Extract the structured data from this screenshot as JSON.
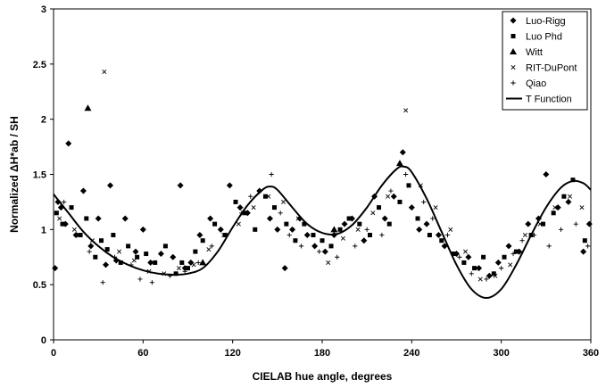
{
  "chart_data": {
    "type": "scatter",
    "xlabel": "CIELAB hue angle, degrees",
    "ylabel": "Normalized ΔH*ab / SH",
    "xlim": [
      0,
      360
    ],
    "ylim": [
      0,
      3
    ],
    "xticks": [
      0,
      60,
      120,
      180,
      240,
      300,
      360
    ],
    "yticks": [
      0,
      0.5,
      1,
      1.5,
      2,
      2.5,
      3
    ],
    "grid": false,
    "legend_position": "top-right",
    "legend": [
      "Luo-Rigg",
      "Luo Phd",
      "Witt",
      "RIT-DuPont",
      "Qiao",
      "T Function"
    ],
    "series": [
      {
        "name": "Luo-Rigg",
        "marker": "diamond",
        "points": [
          [
            1,
            0.65
          ],
          [
            3,
            1.25
          ],
          [
            5,
            1.2
          ],
          [
            8,
            1.05
          ],
          [
            10,
            1.78
          ],
          [
            15,
            0.95
          ],
          [
            20,
            1.35
          ],
          [
            25,
            0.85
          ],
          [
            30,
            1.1
          ],
          [
            35,
            0.68
          ],
          [
            38,
            1.4
          ],
          [
            42,
            0.72
          ],
          [
            48,
            1.1
          ],
          [
            55,
            0.8
          ],
          [
            60,
            1.0
          ],
          [
            65,
            0.7
          ],
          [
            72,
            0.78
          ],
          [
            80,
            0.75
          ],
          [
            85,
            1.4
          ],
          [
            88,
            0.65
          ],
          [
            92,
            0.7
          ],
          [
            98,
            0.95
          ],
          [
            105,
            1.1
          ],
          [
            112,
            1.0
          ],
          [
            118,
            1.4
          ],
          [
            125,
            1.2
          ],
          [
            130,
            1.15
          ],
          [
            138,
            1.35
          ],
          [
            145,
            1.1
          ],
          [
            150,
            1.0
          ],
          [
            155,
            0.65
          ],
          [
            160,
            1.0
          ],
          [
            165,
            1.1
          ],
          [
            170,
            0.95
          ],
          [
            175,
            0.85
          ],
          [
            182,
            0.8
          ],
          [
            188,
            0.95
          ],
          [
            195,
            1.05
          ],
          [
            200,
            1.1
          ],
          [
            208,
            0.9
          ],
          [
            215,
            1.3
          ],
          [
            222,
            1.1
          ],
          [
            228,
            1.3
          ],
          [
            234,
            1.7
          ],
          [
            240,
            1.2
          ],
          [
            245,
            1.0
          ],
          [
            250,
            1.05
          ],
          [
            258,
            0.95
          ],
          [
            262,
            0.85
          ],
          [
            270,
            0.78
          ],
          [
            278,
            0.75
          ],
          [
            285,
            0.65
          ],
          [
            292,
            0.58
          ],
          [
            298,
            0.7
          ],
          [
            305,
            0.85
          ],
          [
            312,
            0.8
          ],
          [
            318,
            1.05
          ],
          [
            325,
            1.1
          ],
          [
            330,
            1.5
          ],
          [
            338,
            1.2
          ],
          [
            345,
            1.25
          ],
          [
            355,
            0.8
          ],
          [
            359,
            1.05
          ]
        ]
      },
      {
        "name": "Luo Phd",
        "marker": "square",
        "points": [
          [
            2,
            1.15
          ],
          [
            6,
            1.05
          ],
          [
            12,
            1.2
          ],
          [
            18,
            0.95
          ],
          [
            22,
            1.1
          ],
          [
            28,
            0.75
          ],
          [
            32,
            0.9
          ],
          [
            36,
            0.82
          ],
          [
            40,
            0.95
          ],
          [
            45,
            0.7
          ],
          [
            50,
            0.85
          ],
          [
            56,
            0.75
          ],
          [
            62,
            0.78
          ],
          [
            68,
            0.7
          ],
          [
            75,
            0.85
          ],
          [
            82,
            0.6
          ],
          [
            86,
            0.7
          ],
          [
            90,
            0.65
          ],
          [
            95,
            0.8
          ],
          [
            100,
            0.9
          ],
          [
            108,
            1.05
          ],
          [
            115,
            0.95
          ],
          [
            122,
            1.25
          ],
          [
            128,
            1.15
          ],
          [
            135,
            1.0
          ],
          [
            142,
            1.3
          ],
          [
            148,
            1.2
          ],
          [
            156,
            1.05
          ],
          [
            162,
            0.9
          ],
          [
            168,
            1.05
          ],
          [
            174,
            0.95
          ],
          [
            180,
            0.9
          ],
          [
            186,
            0.85
          ],
          [
            192,
            1.0
          ],
          [
            198,
            1.1
          ],
          [
            205,
            1.05
          ],
          [
            212,
            0.95
          ],
          [
            218,
            1.2
          ],
          [
            225,
            1.05
          ],
          [
            232,
            1.25
          ],
          [
            238,
            1.4
          ],
          [
            244,
            1.1
          ],
          [
            252,
            0.95
          ],
          [
            260,
            0.9
          ],
          [
            268,
            0.78
          ],
          [
            275,
            0.7
          ],
          [
            282,
            0.65
          ],
          [
            288,
            0.75
          ],
          [
            295,
            0.6
          ],
          [
            302,
            0.75
          ],
          [
            310,
            0.8
          ],
          [
            320,
            0.95
          ],
          [
            328,
            1.05
          ],
          [
            335,
            1.15
          ],
          [
            342,
            1.3
          ],
          [
            348,
            1.45
          ],
          [
            356,
            0.9
          ]
        ]
      },
      {
        "name": "Witt",
        "marker": "triangle",
        "points": [
          [
            23,
            2.1
          ],
          [
            100,
            0.7
          ],
          [
            188,
            1.0
          ],
          [
            232,
            1.6
          ]
        ]
      },
      {
        "name": "RIT-DuPont",
        "marker": "x",
        "points": [
          [
            4,
            1.1
          ],
          [
            14,
            1.0
          ],
          [
            26,
            0.9
          ],
          [
            34,
            2.43
          ],
          [
            44,
            0.8
          ],
          [
            54,
            0.72
          ],
          [
            64,
            0.62
          ],
          [
            74,
            0.6
          ],
          [
            84,
            0.65
          ],
          [
            94,
            0.68
          ],
          [
            104,
            0.82
          ],
          [
            114,
            0.95
          ],
          [
            124,
            1.05
          ],
          [
            134,
            1.2
          ],
          [
            144,
            1.3
          ],
          [
            154,
            1.25
          ],
          [
            164,
            1.1
          ],
          [
            174,
            0.95
          ],
          [
            184,
            0.7
          ],
          [
            194,
            0.92
          ],
          [
            204,
            1.0
          ],
          [
            214,
            1.15
          ],
          [
            224,
            1.3
          ],
          [
            236,
            2.08
          ],
          [
            246,
            1.4
          ],
          [
            256,
            1.2
          ],
          [
            266,
            1.0
          ],
          [
            276,
            0.8
          ],
          [
            286,
            0.55
          ],
          [
            296,
            0.58
          ],
          [
            306,
            0.68
          ],
          [
            316,
            0.95
          ],
          [
            326,
            1.05
          ],
          [
            336,
            1.2
          ],
          [
            346,
            1.3
          ],
          [
            354,
            1.2
          ]
        ]
      },
      {
        "name": "Qiao",
        "marker": "plus",
        "points": [
          [
            7,
            1.25
          ],
          [
            16,
            0.95
          ],
          [
            24,
            0.8
          ],
          [
            33,
            0.52
          ],
          [
            41,
            0.75
          ],
          [
            52,
            0.68
          ],
          [
            58,
            0.55
          ],
          [
            66,
            0.52
          ],
          [
            78,
            0.58
          ],
          [
            88,
            0.62
          ],
          [
            97,
            0.7
          ],
          [
            106,
            0.85
          ],
          [
            116,
            0.95
          ],
          [
            126,
            1.15
          ],
          [
            132,
            1.3
          ],
          [
            146,
            1.5
          ],
          [
            152,
            1.15
          ],
          [
            158,
            0.95
          ],
          [
            166,
            0.85
          ],
          [
            178,
            0.8
          ],
          [
            190,
            0.75
          ],
          [
            202,
            0.85
          ],
          [
            210,
            1.0
          ],
          [
            220,
            0.95
          ],
          [
            226,
            1.35
          ],
          [
            236,
            1.5
          ],
          [
            248,
            1.25
          ],
          [
            254,
            1.1
          ],
          [
            264,
            0.95
          ],
          [
            272,
            0.75
          ],
          [
            280,
            0.6
          ],
          [
            290,
            0.55
          ],
          [
            300,
            0.65
          ],
          [
            308,
            0.78
          ],
          [
            314,
            0.9
          ],
          [
            322,
            0.95
          ],
          [
            332,
            0.85
          ],
          [
            340,
            1.0
          ],
          [
            350,
            1.05
          ],
          [
            358,
            0.85
          ]
        ]
      }
    ],
    "line": {
      "name": "T Function",
      "x": [
        0,
        10,
        20,
        30,
        40,
        50,
        60,
        70,
        80,
        90,
        100,
        110,
        120,
        130,
        140,
        145,
        150,
        160,
        170,
        180,
        190,
        200,
        210,
        220,
        230,
        235,
        240,
        250,
        260,
        270,
        280,
        290,
        300,
        310,
        320,
        330,
        340,
        348,
        355,
        360
      ],
      "y": [
        1.32,
        1.15,
        0.98,
        0.85,
        0.75,
        0.68,
        0.63,
        0.6,
        0.59,
        0.6,
        0.65,
        0.8,
        1.02,
        1.22,
        1.36,
        1.39,
        1.36,
        1.2,
        1.05,
        0.97,
        0.96,
        1.04,
        1.2,
        1.4,
        1.55,
        1.57,
        1.52,
        1.28,
        0.98,
        0.68,
        0.46,
        0.38,
        0.46,
        0.68,
        0.95,
        1.2,
        1.38,
        1.44,
        1.42,
        1.36
      ]
    }
  }
}
